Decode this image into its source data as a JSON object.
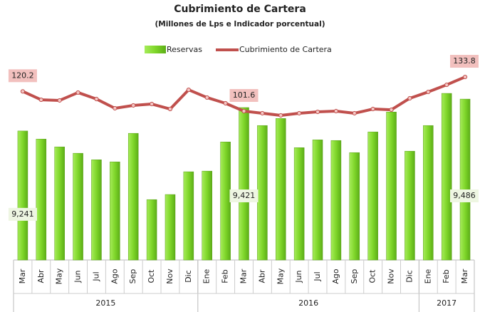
{
  "chart_data": {
    "type": "bar-line",
    "title": "Cubrimiento de Cartera",
    "subtitle": "(Millones de Lps e Indicador porcentual)",
    "groups": [
      {
        "name": "2015",
        "categories": [
          "Mar",
          "Abr",
          "May",
          "Jun",
          "Jul",
          "Ago",
          "Sep",
          "Oct",
          "Nov",
          "Dic"
        ]
      },
      {
        "name": "2016",
        "categories": [
          "Ene",
          "Feb",
          "Mar",
          "Abr",
          "May",
          "Jun",
          "Jul",
          "Ago",
          "Sep",
          "Oct",
          "Nov",
          "Dic"
        ]
      },
      {
        "name": "2017",
        "categories": [
          "Ene",
          "Feb",
          "Mar"
        ]
      }
    ],
    "series": [
      {
        "name": "Reservas",
        "type": "bar",
        "color": "#7fd62a",
        "values": [
          9241,
          9179,
          9119,
          9070,
          9020,
          9004,
          9223,
          8714,
          8753,
          8928,
          8933,
          9157,
          9421,
          9283,
          9337,
          9113,
          9173,
          9168,
          9075,
          9234,
          9387,
          9086,
          9283,
          9530,
          9486
        ],
        "value_labels": [
          "9,241",
          null,
          null,
          null,
          null,
          null,
          null,
          null,
          null,
          null,
          null,
          null,
          "9,421",
          null,
          null,
          null,
          null,
          null,
          null,
          null,
          null,
          null,
          null,
          null,
          "9,486"
        ]
      },
      {
        "name": "Cubrimiento de Cartera",
        "type": "line",
        "axis": "y2",
        "color": "#c0504d",
        "values": [
          120.2,
          112.3,
          111.7,
          119.1,
          113.0,
          104.3,
          107.0,
          108.3,
          103.6,
          121.7,
          114.4,
          109.0,
          101.6,
          99.6,
          97.6,
          99.6,
          100.9,
          101.6,
          99.6,
          103.6,
          102.9,
          113.7,
          119.7,
          126.4,
          133.8
        ],
        "value_labels": [
          "120.2",
          null,
          null,
          null,
          null,
          null,
          null,
          null,
          null,
          null,
          null,
          null,
          "101.6",
          null,
          null,
          null,
          null,
          null,
          null,
          null,
          null,
          null,
          null,
          null,
          "133.8"
        ]
      }
    ],
    "ylim": [
      8250,
      9700
    ],
    "y2lim": [
      -38.7,
      139.2
    ]
  }
}
